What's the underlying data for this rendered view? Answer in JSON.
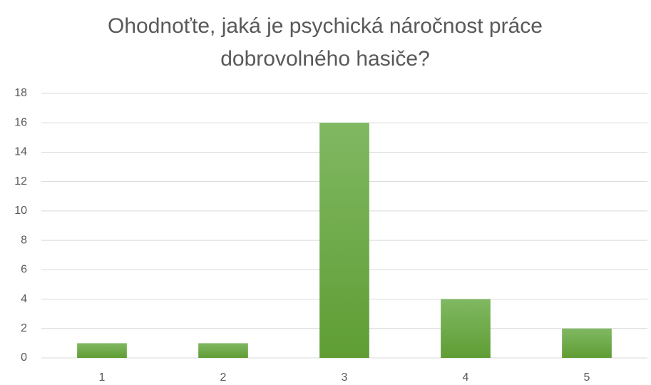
{
  "chart_data": {
    "type": "bar",
    "title": "Ohodnoťte, jaká je psychická náročnost práce dobrovolného hasiče?",
    "categories": [
      "1",
      "2",
      "3",
      "4",
      "5"
    ],
    "values": [
      1,
      1,
      16,
      4,
      2
    ],
    "color": "#70ad47",
    "ylim": [
      0,
      18
    ],
    "yticks": [
      0,
      2,
      4,
      6,
      8,
      10,
      12,
      14,
      16,
      18
    ],
    "grid": true
  }
}
